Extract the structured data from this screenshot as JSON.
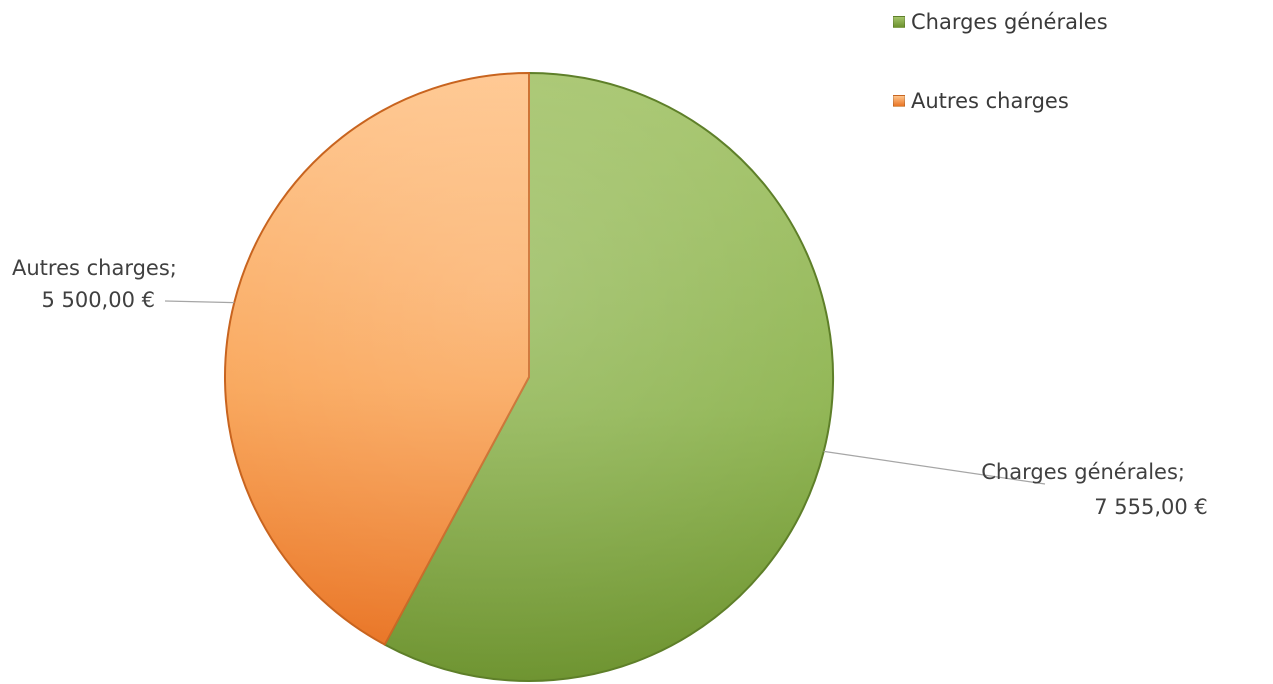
{
  "chart_data": {
    "type": "pie",
    "title": "",
    "series": [
      {
        "slices": [
          {
            "name": "Charges générales",
            "value": 7555,
            "label_line1": "Charges générales;",
            "label_line2": "7 555,00 €",
            "color_light": "#a4c46a",
            "color_mid": "#8fb552",
            "color_dark": "#6d932f",
            "edge": "#5e7f29"
          },
          {
            "name": "Autres charges",
            "value": 5500,
            "label_line1": "Autres charges;",
            "label_line2": "5 500,00 €",
            "color_light": "#ffc48a",
            "color_mid": "#f9a456",
            "color_dark": "#e97424",
            "edge": "#c8641f"
          }
        ]
      }
    ],
    "legend": {
      "position": "top-right",
      "items": [
        "Charges générales",
        "Autres charges"
      ]
    },
    "start_angle": "12 o'clock",
    "direction": "clockwise"
  }
}
